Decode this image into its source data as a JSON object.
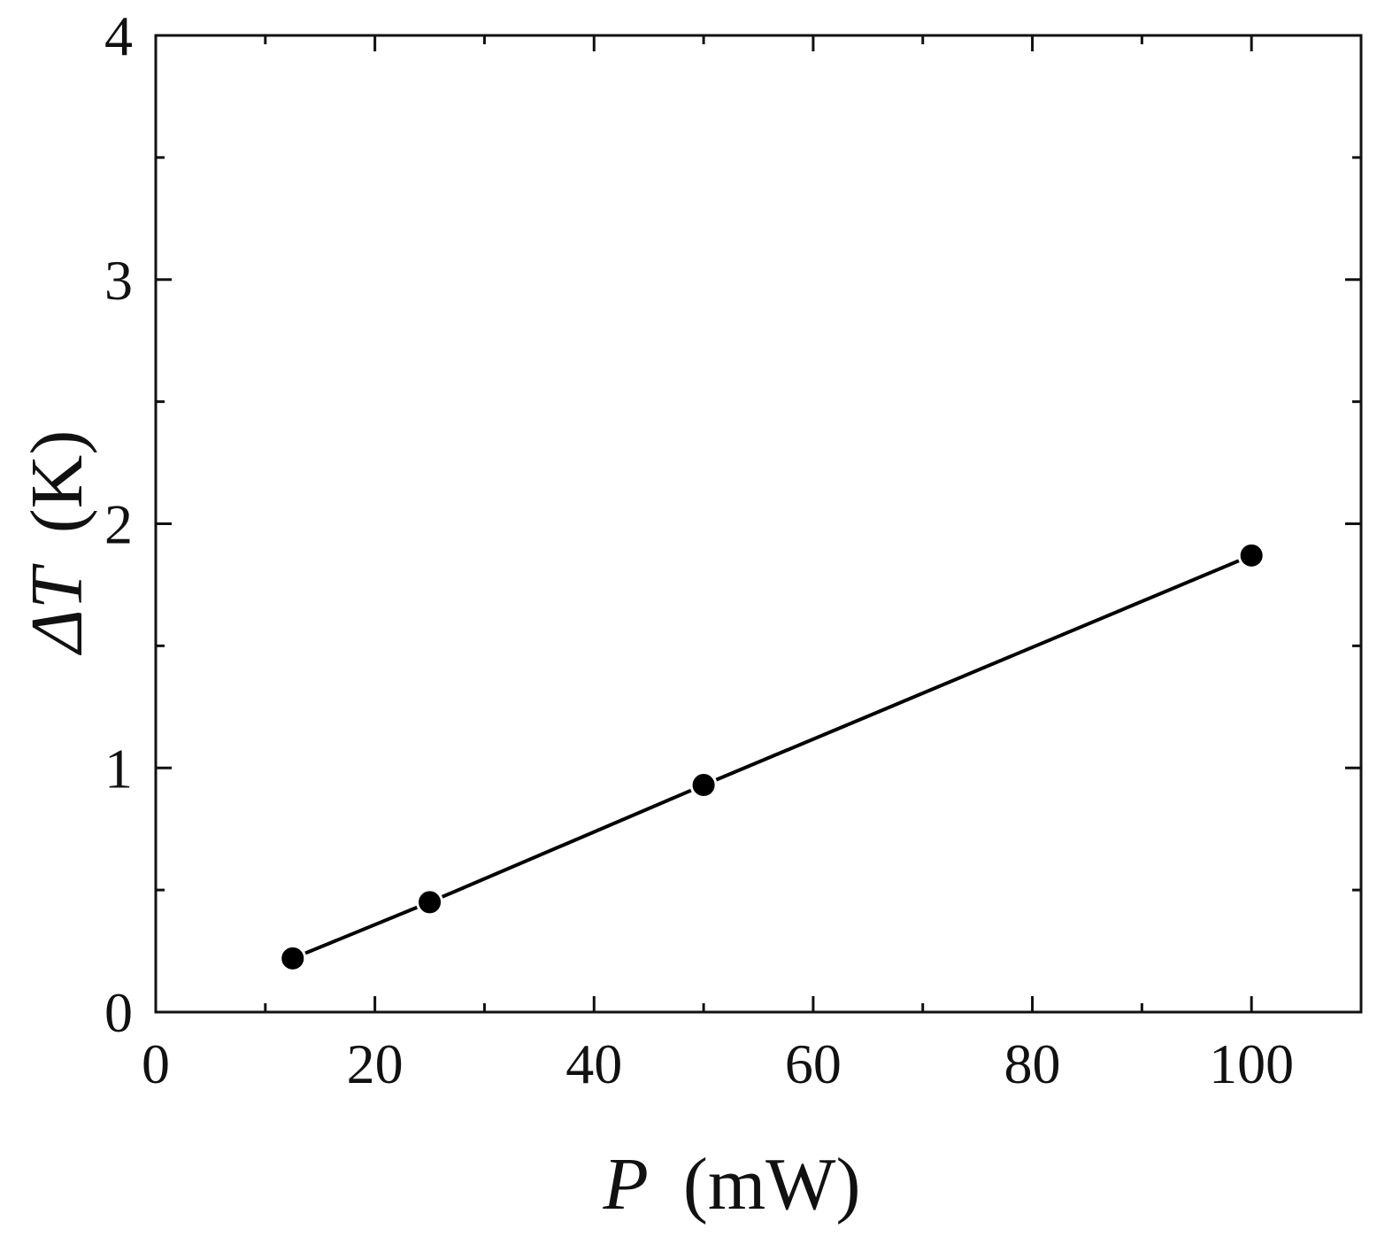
{
  "chart_data": {
    "type": "line",
    "title": "",
    "xlabel": {
      "symbol": "P",
      "unit": "(mW)"
    },
    "ylabel": {
      "symbol": "ΔT",
      "unit": "(K)"
    },
    "xlim": [
      0,
      110
    ],
    "ylim": [
      0,
      4
    ],
    "x_major_ticks": [
      0,
      20,
      40,
      60,
      80,
      100
    ],
    "x_minor_ticks": [
      10,
      30,
      50,
      70,
      90
    ],
    "y_major_ticks": [
      0,
      1,
      2,
      3,
      4
    ],
    "y_minor_ticks": [
      0.5,
      1.5,
      2.5,
      3.5
    ],
    "x_tick_labels": [
      "0",
      "20",
      "40",
      "60",
      "80",
      "100"
    ],
    "y_tick_labels": [
      "0",
      "1",
      "2",
      "3",
      "4"
    ],
    "grid": false,
    "series": [
      {
        "x": [
          12.5,
          25,
          50,
          100
        ],
        "y": [
          0.22,
          0.45,
          0.93,
          1.87
        ],
        "marker": "circle",
        "color": "#000000"
      }
    ]
  }
}
